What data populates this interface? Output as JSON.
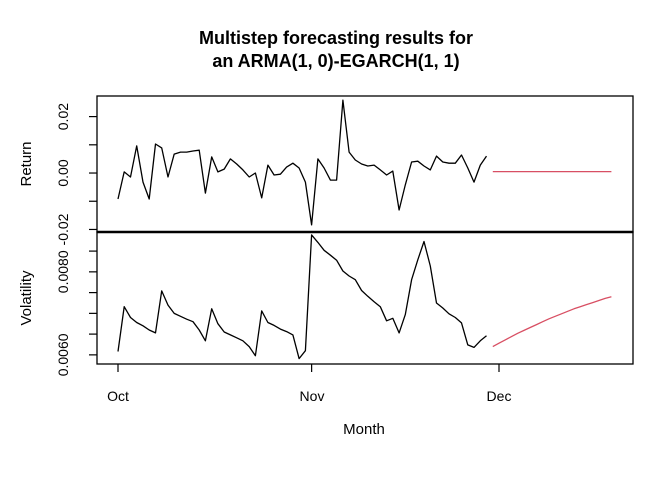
{
  "title": {
    "line1": "Multistep forecasting results for",
    "line2": "an ARMA(1, 0)-EGARCH(1, 1)"
  },
  "colors": {
    "observed": "#000000",
    "forecast": "#d84f63",
    "axis": "#000000",
    "background": "#ffffff"
  },
  "x_axis": {
    "label": "Month",
    "ticks": [
      {
        "label": "Oct",
        "day": 0
      },
      {
        "label": "Nov",
        "day": 31
      },
      {
        "label": "Dec",
        "day": 61
      }
    ]
  },
  "chart_data": [
    {
      "type": "line",
      "panel": "return",
      "ylabel": "Return",
      "ylim": [
        -0.0209,
        0.0273
      ],
      "grid": false,
      "yticks": {
        "values": [
          0.02,
          0.01,
          0.0,
          -0.01,
          -0.02
        ],
        "labels": [
          "0.02",
          "",
          "0.00",
          "",
          "-0.02"
        ]
      },
      "series": [
        {
          "name": "observed",
          "color_key": "observed",
          "start_day": 0,
          "values": [
            -0.0092,
            0.0004,
            -0.0014,
            0.0096,
            -0.0032,
            -0.0092,
            0.0103,
            0.0089,
            -0.0014,
            0.0067,
            0.0074,
            0.0074,
            0.0078,
            0.0081,
            -0.0071,
            0.0057,
            0.0004,
            0.0014,
            0.005,
            0.0032,
            0.0011,
            -0.0014,
            0.0,
            -0.0088,
            0.0028,
            -0.0007,
            -0.0004,
            0.0021,
            0.0035,
            0.0018,
            -0.0032,
            -0.0184,
            0.005,
            0.0018,
            -0.0025,
            -0.0025,
            0.0258,
            0.0074,
            0.0046,
            0.0032,
            0.0025,
            0.0028,
            0.0011,
            -0.0007,
            0.0007,
            -0.0131,
            -0.0042,
            0.0039,
            0.0042,
            0.0025,
            0.0011,
            0.006,
            0.0039,
            0.0035,
            0.0035,
            0.0064,
            0.0018,
            -0.0032,
            0.0028,
            0.006
          ]
        },
        {
          "name": "forecast",
          "color_key": "forecast",
          "start_day": 60,
          "values": [
            0.0005,
            0.0005,
            0.0005,
            0.0005,
            0.0005,
            0.0005,
            0.0005,
            0.0005,
            0.0005,
            0.0005,
            0.0005,
            0.0005,
            0.0005,
            0.0005,
            0.0005,
            0.0005,
            0.0005,
            0.0005,
            0.0005,
            0.0005
          ]
        }
      ]
    },
    {
      "type": "line",
      "panel": "volatility",
      "ylabel": "Volatility",
      "ylim": [
        0.00578,
        0.00896
      ],
      "grid": false,
      "yticks": {
        "values": [
          0.0085,
          0.008,
          0.0075,
          0.007,
          0.0065,
          0.006
        ],
        "labels": [
          "",
          "0.0080",
          "",
          "",
          "",
          "0.0060"
        ]
      },
      "series": [
        {
          "name": "observed",
          "color_key": "observed",
          "start_day": 0,
          "values": [
            0.00608,
            0.00716,
            0.0069,
            0.00678,
            0.0067,
            0.0066,
            0.00653,
            0.00754,
            0.0072,
            0.007,
            0.00693,
            0.00686,
            0.0068,
            0.0066,
            0.00634,
            0.00711,
            0.00675,
            0.00655,
            0.00648,
            0.00641,
            0.00634,
            0.0062,
            0.00598,
            0.00706,
            0.00678,
            0.00671,
            0.00662,
            0.00656,
            0.00648,
            0.00591,
            0.0061,
            0.00889,
            0.00871,
            0.00852,
            0.0084,
            0.00828,
            0.00802,
            0.0079,
            0.00781,
            0.00755,
            0.00741,
            0.00728,
            0.00716,
            0.00682,
            0.00688,
            0.00653,
            0.00697,
            0.00781,
            0.00829,
            0.00873,
            0.00814,
            0.00725,
            0.00713,
            0.00699,
            0.0069,
            0.00677,
            0.00624,
            0.00618,
            0.00634,
            0.00646
          ]
        },
        {
          "name": "forecast",
          "color_key": "forecast",
          "start_day": 60,
          "values": [
            0.0062,
            0.00628,
            0.00636,
            0.00644,
            0.00652,
            0.00659,
            0.00666,
            0.00673,
            0.0068,
            0.00687,
            0.00693,
            0.00699,
            0.00705,
            0.00711,
            0.00716,
            0.00721,
            0.00726,
            0.00731,
            0.00736,
            0.0074
          ]
        }
      ]
    }
  ]
}
